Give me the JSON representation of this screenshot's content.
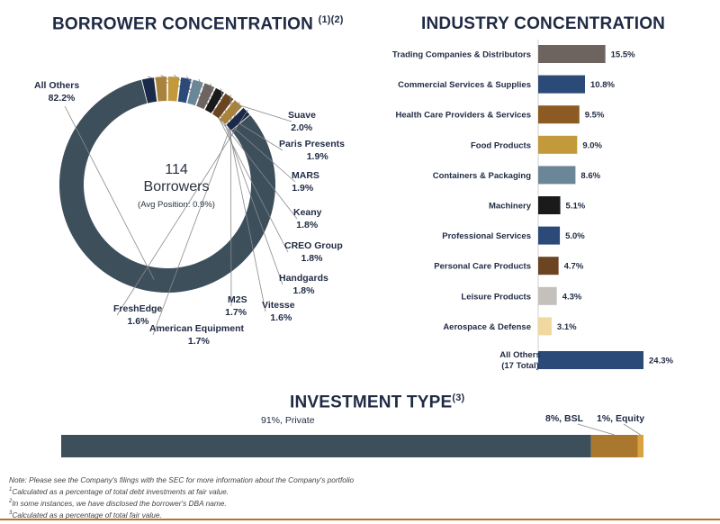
{
  "titles": {
    "borrower": "BORROWER CONCENTRATION",
    "borrower_sup": "(1)(2)",
    "industry": "INDUSTRY CONCENTRATION",
    "investment": "INVESTMENT TYPE",
    "investment_sup": "(3)"
  },
  "donut_center": {
    "count": "114",
    "word": "Borrowers",
    "avg": "(Avg Position: 0.9%)"
  },
  "chart_data": [
    {
      "type": "pie",
      "title": "BORROWER CONCENTRATION",
      "slices": [
        {
          "name": "All Others",
          "label": "82.2%",
          "value": 82.2,
          "color": "#3e4f5c"
        },
        {
          "name": "Suave",
          "label": "2.0%",
          "value": 2.0,
          "color": "#1c2a4a"
        },
        {
          "name": "Paris Presents",
          "label": "1.9%",
          "value": 1.9,
          "color": "#a9823c"
        },
        {
          "name": "MARS",
          "label": "1.9%",
          "value": 1.9,
          "color": "#c29a3c"
        },
        {
          "name": "Keany",
          "label": "1.8%",
          "value": 1.8,
          "color": "#2b4a78"
        },
        {
          "name": "CREO Group",
          "label": "1.8%",
          "value": 1.8,
          "color": "#6b8797"
        },
        {
          "name": "Handgards",
          "label": "1.8%",
          "value": 1.8,
          "color": "#6d6460"
        },
        {
          "name": "Vitesse",
          "label": "1.6%",
          "value": 1.6,
          "color": "#1a1a1a"
        },
        {
          "name": "M2S",
          "label": "1.7%",
          "value": 1.7,
          "color": "#6b4521"
        },
        {
          "name": "American Equipment",
          "label": "1.7%",
          "value": 1.7,
          "color": "#a9823c"
        },
        {
          "name": "FreshEdge",
          "label": "1.6%",
          "value": 1.6,
          "color": "#1c2a4a"
        }
      ]
    },
    {
      "type": "bar",
      "title": "INDUSTRY CONCENTRATION",
      "orientation": "horizontal",
      "categories": [
        "Trading Companies & Distributors",
        "Commercial Services & Supplies",
        "Health Care Providers & Services",
        "Food Products",
        "Containers & Packaging",
        "Machinery",
        "Professional Services",
        "Personal Care Products",
        "Leisure Products",
        "Aerospace & Defense",
        "All Others (17 Total)"
      ],
      "values": [
        15.5,
        10.8,
        9.5,
        9.0,
        8.6,
        5.1,
        5.0,
        4.7,
        4.3,
        3.1,
        24.3
      ],
      "labels": [
        "15.5%",
        "10.8%",
        "9.5%",
        "9.0%",
        "8.6%",
        "5.1%",
        "5.0%",
        "4.7%",
        "4.3%",
        "3.1%",
        "24.3%"
      ],
      "colors": [
        "#6d6460",
        "#2b4a78",
        "#8c5a22",
        "#c29a3c",
        "#6b8797",
        "#1a1a1a",
        "#2b4a78",
        "#6b4521",
        "#c4c1bd",
        "#efd9a0",
        "#2b4a78"
      ]
    },
    {
      "type": "bar",
      "title": "INVESTMENT TYPE",
      "orientation": "stacked-horizontal",
      "segments": [
        {
          "name": "Private",
          "label": "91%, Private",
          "value": 91,
          "color": "#3e4f5c"
        },
        {
          "name": "BSL",
          "label": "8%, BSL",
          "value": 8,
          "color": "#a9782e"
        },
        {
          "name": "Equity",
          "label": "1%, Equity",
          "value": 1,
          "color": "#d9a13f"
        }
      ]
    }
  ],
  "notes": [
    "Note: Please see the Company's filings with the SEC for more information about the Company's portfolio",
    "Calculated as a percentage of total debt investments at fair value.",
    "In some instances, we have disclosed the borrower's DBA name.",
    "Calculated as a percentage of total fair value."
  ],
  "note_marks": [
    "1",
    "2",
    "3"
  ]
}
